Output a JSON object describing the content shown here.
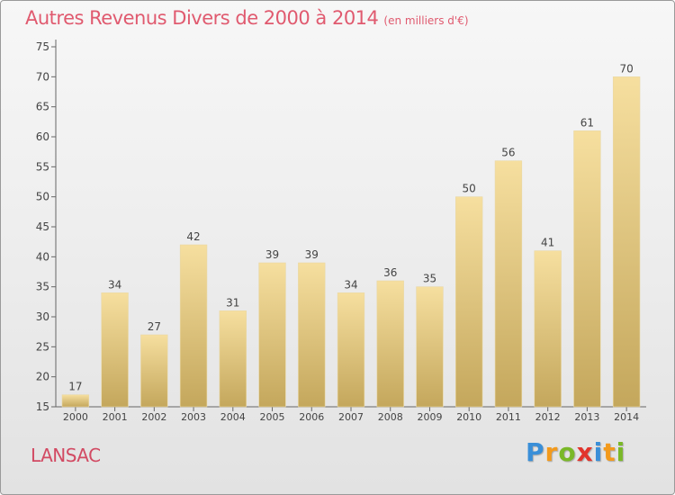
{
  "header": {
    "title": "Autres Revenus Divers de 2000 à 2014",
    "unit": "(en milliers d'€)"
  },
  "location": "LANSAC",
  "brand": {
    "name": "Proxiti",
    "letters": [
      {
        "ch": "P",
        "color": "#3a8fd8"
      },
      {
        "ch": "r",
        "color": "#f39a1c"
      },
      {
        "ch": "o",
        "color": "#7ab828"
      },
      {
        "ch": "x",
        "color": "#e2342c"
      },
      {
        "ch": "i",
        "color": "#3a8fd8"
      },
      {
        "ch": "t",
        "color": "#f39a1c"
      },
      {
        "ch": "i",
        "color": "#7ab828"
      }
    ]
  },
  "colors": {
    "title": "#e05a6f",
    "bar_light": "#f5dc9c",
    "bar_dark": "#c8aa5e",
    "axis": "#555555"
  },
  "chart_data": {
    "type": "bar",
    "title": "Autres Revenus Divers de 2000 à 2014",
    "subtitle": "(en milliers d'€)",
    "categories": [
      "2000",
      "2001",
      "2002",
      "2003",
      "2004",
      "2005",
      "2006",
      "2007",
      "2008",
      "2009",
      "2010",
      "2011",
      "2012",
      "2013",
      "2014"
    ],
    "values": [
      17,
      34,
      27,
      42,
      31,
      39,
      39,
      34,
      36,
      35,
      50,
      56,
      41,
      61,
      70
    ],
    "ylim": [
      15,
      75
    ],
    "yticks": [
      15,
      20,
      25,
      30,
      35,
      40,
      45,
      50,
      55,
      60,
      65,
      70,
      75
    ],
    "grid": false,
    "data_labels": true
  }
}
